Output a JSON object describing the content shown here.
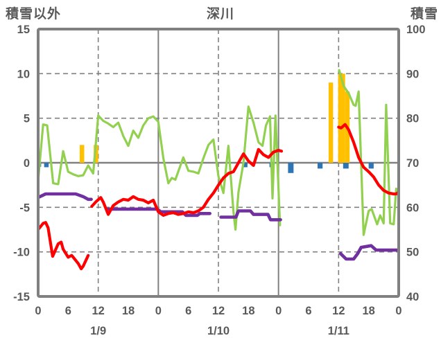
{
  "header": {
    "left_axis_title": "積雪以外",
    "station_title": "深川",
    "right_axis_title": "積雪"
  },
  "chart_data": {
    "type": "line",
    "title": "深川",
    "xlabel": "",
    "ylabel_left": "積雪以外",
    "ylabel_right": "積雪",
    "x_range_hours": [
      0,
      72
    ],
    "left_axis": {
      "min": -15,
      "max": 15,
      "ticks": [
        15,
        10,
        5,
        0,
        -5,
        -10,
        -15
      ]
    },
    "right_axis": {
      "min": 40,
      "max": 100,
      "ticks": [
        100,
        90,
        80,
        70,
        60,
        50,
        40
      ]
    },
    "x_axis": {
      "tick_hours": [
        0,
        6,
        12,
        18,
        24,
        30,
        36,
        42,
        48,
        54,
        60,
        66,
        72
      ],
      "tick_labels": [
        "0",
        "6",
        "12",
        "18",
        "0",
        "6",
        "12",
        "18",
        "0",
        "6",
        "12",
        "18",
        "0"
      ],
      "day_labels": [
        {
          "label": "1/9",
          "hour": 12
        },
        {
          "label": "1/10",
          "hour": 36
        },
        {
          "label": "1/11",
          "hour": 60
        }
      ]
    },
    "grid": {
      "h_dashed_values": [
        10,
        5,
        -5,
        -10
      ],
      "h_solid_values": [
        0
      ],
      "v_dashed_hours": [
        12,
        36,
        60
      ],
      "v_solid_hours": [
        24,
        48
      ],
      "color": "#808080"
    },
    "colors": {
      "red_line": "#FF0000",
      "green_line": "#92D050",
      "purple_line": "#7030A0",
      "orange_bars": "#FFC000",
      "blue_bars": "#2E75B6",
      "frame": "#808080",
      "text": "#595959"
    },
    "series": {
      "red_line": {
        "axis": "left",
        "segments": [
          [
            [
              0,
              -7.5
            ],
            [
              1,
              -6.8
            ],
            [
              1.5,
              -6.7
            ],
            [
              2,
              -7.3
            ],
            [
              2.9,
              -10.5
            ],
            [
              4,
              -9.1
            ],
            [
              4.6,
              -8.9
            ],
            [
              5,
              -9.7
            ],
            [
              6,
              -10.6
            ],
            [
              6.7,
              -10.4
            ],
            [
              7,
              -10.6
            ],
            [
              8,
              -11.3
            ],
            [
              8.6,
              -11.9
            ],
            [
              9,
              -11.6
            ],
            [
              10,
              -10.4
            ]
          ],
          [
            [
              10.7,
              -4.9
            ],
            [
              11.5,
              -4.4
            ],
            [
              12.5,
              -3.9
            ],
            [
              13,
              -4.4
            ],
            [
              14,
              -5.8
            ],
            [
              15,
              -4.8
            ],
            [
              16,
              -4.4
            ],
            [
              17,
              -4.1
            ],
            [
              18,
              -4.2
            ],
            [
              19,
              -3.8
            ],
            [
              20,
              -4.1
            ],
            [
              21,
              -4.2
            ],
            [
              22,
              -4.5
            ],
            [
              23,
              -4.2
            ],
            [
              24,
              -5.5
            ],
            [
              25,
              -5.9
            ],
            [
              26,
              -5.7
            ],
            [
              27,
              -5.6
            ],
            [
              28,
              -5.8
            ],
            [
              29,
              -5.7
            ],
            [
              30,
              -5.5
            ],
            [
              31,
              -5.6
            ],
            [
              32,
              -5.4
            ],
            [
              33,
              -5.0
            ],
            [
              34,
              -4.1
            ],
            [
              35,
              -3.4
            ],
            [
              36,
              -2.5
            ],
            [
              37,
              -1.7
            ],
            [
              38,
              -1.2
            ],
            [
              39,
              -1.0
            ],
            [
              40,
              0.0
            ],
            [
              41,
              1.0
            ],
            [
              42,
              0.2
            ],
            [
              43,
              -0.3
            ],
            [
              44,
              1.5
            ],
            [
              45,
              0.9
            ],
            [
              46,
              0.6
            ],
            [
              47,
              1.2
            ],
            [
              48,
              1.4
            ],
            [
              48.6,
              1.3
            ]
          ],
          [
            [
              60,
              4.0
            ],
            [
              60.5,
              3.9
            ],
            [
              61.3,
              4.3
            ],
            [
              62,
              3.7
            ],
            [
              63,
              2.3
            ],
            [
              64,
              0.6
            ],
            [
              65,
              -0.5
            ],
            [
              66,
              -1.0
            ],
            [
              67,
              -1.6
            ],
            [
              68,
              -2.5
            ],
            [
              69,
              -3.1
            ],
            [
              70,
              -3.4
            ],
            [
              71,
              -3.5
            ],
            [
              71.5,
              -3.5
            ],
            [
              72,
              -3.3
            ]
          ]
        ]
      },
      "green_line": {
        "axis": "left",
        "segments": [
          [
            [
              0,
              -2.0
            ],
            [
              1,
              4.3
            ],
            [
              1.8,
              4.2
            ],
            [
              3,
              -2.3
            ],
            [
              4,
              -2.4
            ],
            [
              5,
              1.3
            ],
            [
              6,
              -1.0
            ],
            [
              7,
              -1.3
            ],
            [
              8,
              -1.5
            ],
            [
              9,
              -1.4
            ],
            [
              10,
              -0.3
            ],
            [
              11,
              -1.2
            ],
            [
              12,
              5.3
            ],
            [
              13,
              4.7
            ],
            [
              14,
              4.4
            ],
            [
              15,
              4.0
            ],
            [
              16,
              4.5
            ],
            [
              17,
              3.0
            ],
            [
              18,
              1.9
            ],
            [
              19,
              3.6
            ],
            [
              20,
              2.8
            ],
            [
              21,
              4.2
            ],
            [
              22,
              5.0
            ],
            [
              23,
              5.2
            ],
            [
              24,
              4.6
            ],
            [
              25,
              0.5
            ],
            [
              26,
              -2.3
            ],
            [
              26.7,
              -1.7
            ],
            [
              27.4,
              -1.9
            ],
            [
              29,
              0.6
            ],
            [
              30,
              -0.9
            ],
            [
              31,
              -1.0
            ],
            [
              32,
              -1.2
            ],
            [
              33,
              0.5
            ],
            [
              34,
              2.0
            ],
            [
              35,
              2.6
            ],
            [
              36,
              -1.5
            ],
            [
              37,
              -3.4
            ],
            [
              38,
              1.9
            ],
            [
              39,
              -5.5
            ],
            [
              39.4,
              -7.5
            ],
            [
              40,
              -3.3
            ],
            [
              41,
              0.0
            ],
            [
              42,
              6.3
            ],
            [
              43,
              4.5
            ],
            [
              44,
              2.3
            ],
            [
              44.8,
              1.9
            ],
            [
              45.5,
              4.2
            ],
            [
              46.3,
              5.2
            ],
            [
              46.8,
              -4.0
            ],
            [
              47.4,
              5.3
            ],
            [
              48.3,
              -7.0
            ]
          ],
          [
            [
              60.1,
              10.4
            ],
            [
              61,
              8.6
            ],
            [
              62,
              7.8
            ],
            [
              63,
              6.5
            ],
            [
              63.4,
              6.4
            ],
            [
              64,
              8.0
            ],
            [
              65,
              -8.1
            ],
            [
              66,
              -5.4
            ],
            [
              66.6,
              -5.2
            ],
            [
              67.7,
              -6.9
            ],
            [
              68.3,
              -5.9
            ],
            [
              69,
              -6.8
            ],
            [
              69.5,
              6.5
            ],
            [
              70.3,
              -6.8
            ],
            [
              71,
              -6.9
            ],
            [
              71.5,
              -2.9
            ],
            [
              72,
              -3.3
            ]
          ]
        ]
      },
      "purple_line": {
        "axis": "right_snow_depth",
        "segments": [
          [
            [
              0,
              -3.9
            ],
            [
              1.5,
              -3.5
            ],
            [
              7.5,
              -3.5
            ],
            [
              9,
              -3.8
            ],
            [
              10,
              -4.1
            ],
            [
              10.6,
              -4.1
            ]
          ],
          [
            [
              13.8,
              -5.2
            ],
            [
              23.8,
              -5.2
            ],
            [
              24.5,
              -5.5
            ],
            [
              28.8,
              -5.5
            ],
            [
              29.5,
              -5.9
            ],
            [
              31.8,
              -5.9
            ],
            [
              32.3,
              -5.7
            ],
            [
              34.3,
              -5.7
            ]
          ],
          [
            [
              36.5,
              -6.1
            ],
            [
              39.5,
              -6.1
            ],
            [
              40,
              -5.4
            ],
            [
              42.4,
              -5.4
            ],
            [
              43,
              -5.8
            ],
            [
              45.9,
              -5.8
            ],
            [
              46.4,
              -6.4
            ],
            [
              48.4,
              -6.4
            ]
          ],
          [
            [
              60.4,
              -10.2
            ],
            [
              61.5,
              -10.8
            ],
            [
              63,
              -10.8
            ],
            [
              63.8,
              -10.2
            ],
            [
              64.5,
              -9.5
            ],
            [
              66.5,
              -9.3
            ],
            [
              67.5,
              -9.8
            ],
            [
              72,
              -9.8
            ]
          ]
        ]
      },
      "orange_bars": {
        "axis": "left",
        "bars": [
          {
            "x0": 8.3,
            "x1": 9.2,
            "v": 2
          },
          {
            "x0": 11.1,
            "x1": 12.0,
            "v": 2
          },
          {
            "x0": 58.0,
            "x1": 58.9,
            "v": 9
          },
          {
            "x0": 59.9,
            "x1": 61.3,
            "v": 10
          },
          {
            "x0": 61.3,
            "x1": 62.2,
            "v": 8
          }
        ]
      },
      "blue_bars": {
        "axis": "left",
        "bars": [
          {
            "x0": 0.05,
            "x1": 0.6,
            "v": -0.45
          },
          {
            "x0": 1.2,
            "x1": 2.1,
            "v": -0.5
          },
          {
            "x0": 40.9,
            "x1": 41.8,
            "v": -0.5
          },
          {
            "x0": 46.2,
            "x1": 47.1,
            "v": -0.5
          },
          {
            "x0": 49.9,
            "x1": 51.0,
            "v": -1.15
          },
          {
            "x0": 55.8,
            "x1": 56.8,
            "v": -0.65
          },
          {
            "x0": 60.9,
            "x1": 62.0,
            "v": -0.65
          },
          {
            "x0": 66.0,
            "x1": 67.0,
            "v": -0.65
          }
        ]
      }
    }
  }
}
